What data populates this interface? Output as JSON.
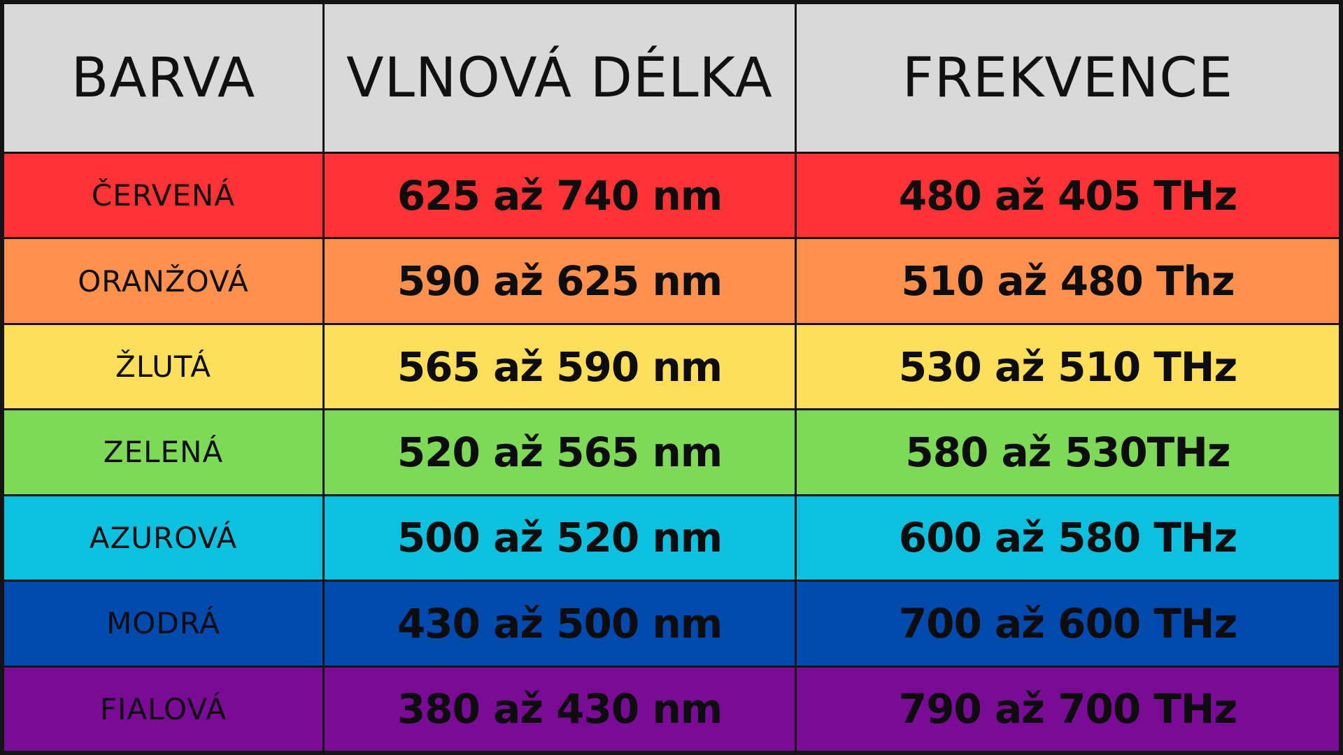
{
  "headers": {
    "color": "BARVA",
    "wavelength": "VLNOVÁ DÉLKA",
    "frequency": "FREKVENCE"
  },
  "rows": [
    {
      "name": "ČERVENÁ",
      "wavelength": "625 až 740 nm",
      "frequency": "480 až 405 THz",
      "bg": "#ff3333"
    },
    {
      "name": "ORANŽOVÁ",
      "wavelength": "590 až 625 nm",
      "frequency": "510 až 480 Thz",
      "bg": "#ff914d"
    },
    {
      "name": "ŽLUTÁ",
      "wavelength": "565 až 590 nm",
      "frequency": "530 až 510 THz",
      "bg": "#ffde59"
    },
    {
      "name": "ZELENÁ",
      "wavelength": "520 až 565 nm",
      "frequency": "580 až 530THz",
      "bg": "#7ed957"
    },
    {
      "name": "AZUROVÁ",
      "wavelength": "500 až 520 nm",
      "frequency": "600 až 580 THz",
      "bg": "#0cc0df"
    },
    {
      "name": "MODRÁ",
      "wavelength": "430 až 500 nm",
      "frequency": "700 až 600 THz",
      "bg": "#004aad"
    },
    {
      "name": "FIALOVÁ",
      "wavelength": "380 až 430 nm",
      "frequency": "790 až 700 THz",
      "bg": "#7a0b96"
    }
  ],
  "colors": {
    "header_bg": "#d9d9d9",
    "grid_lines": "#141414",
    "text": "#0d0d0d"
  }
}
